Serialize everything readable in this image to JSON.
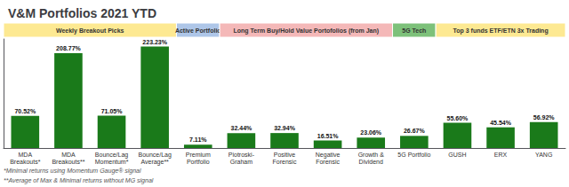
{
  "chart_data": {
    "type": "bar",
    "title": "V&M Portfolios 2021 YTD",
    "categories": [
      "MDA\nBreakouts*",
      "MDA\nBreakouts**",
      "Bounce/Lag\nMomentum*",
      "Bounce/Lag\nAverage**",
      "Premium\nPortfolio",
      "Piotroski-\nGraham",
      "Positive\nForensic",
      "Negative\nForensic",
      "Growth &\nDividend",
      "5G Portfolio",
      "GUSH",
      "ERX",
      "YANG"
    ],
    "values": [
      70.52,
      208.77,
      71.05,
      223.23,
      7.11,
      32.44,
      32.94,
      16.51,
      23.06,
      26.67,
      55.6,
      45.54,
      56.92
    ],
    "value_labels": [
      "70.52%",
      "208.77%",
      "71.05%",
      "223.23%",
      "7.11%",
      "32.44%",
      "32.94%",
      "16.51%",
      "23.06%",
      "26.67%",
      "55.60%",
      "45.54%",
      "56.92%"
    ],
    "data_labels": true,
    "color": "#1a7a1a",
    "ylim": [
      0,
      240
    ],
    "tick_labels": "x",
    "grid": false,
    "sections": [
      {
        "label": "Weekly Breakout Picks",
        "first": "MDA\nBreakouts*",
        "last": "Bounce/Lag\nAverage**",
        "color": "#fde992"
      },
      {
        "label": "Active Portfolio",
        "first": "Premium\nPortfolio",
        "last": "Premium\nPortfolio",
        "color": "#aec6e8"
      },
      {
        "label": "Long Term Buy/Hold Value Portofolios (from Jan)",
        "first": "Piotroski-\nGraham",
        "last": "Growth &\nDividend",
        "color": "#f4b8b8"
      },
      {
        "label": "5G Tech",
        "first": "5G Portfolio",
        "last": "5G Portfolio",
        "color": "#7dc17a"
      },
      {
        "label": "Top 3 funds ETF/ETN 3x Trading",
        "first": "GUSH",
        "last": "YANG",
        "color": "#fde992"
      }
    ],
    "notes": [
      "*Minimal returns using Momentum Gauge® signal",
      "**Average of Max & Minimal returns without MG signal"
    ]
  }
}
